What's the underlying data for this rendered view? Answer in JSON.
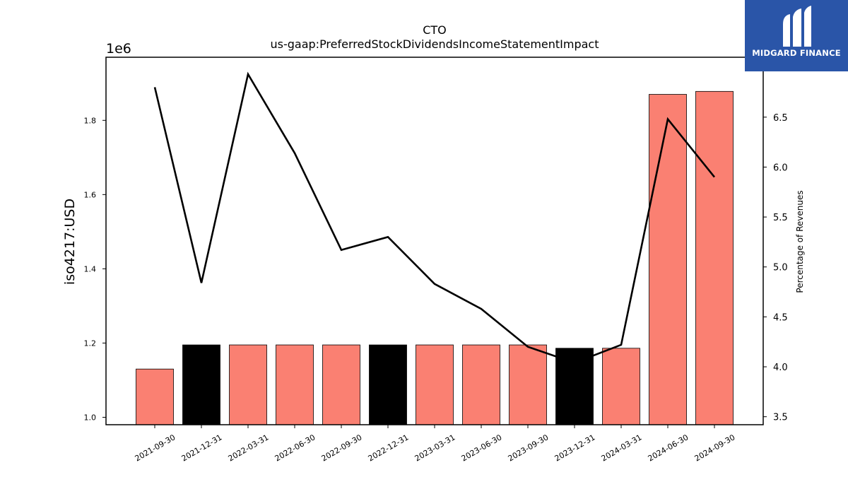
{
  "chart_data": {
    "type": "bar",
    "title": "CTO",
    "subtitle": "us-gaap:PreferredStockDividendsIncomeStatementImpact",
    "ylabel": "iso4217:USD",
    "y_multiplier": "1e6",
    "y2label": "Percentage of Revenues",
    "categories": [
      "2021-09-30",
      "2021-12-31",
      "2022-03-31",
      "2022-06-30",
      "2022-09-30",
      "2022-12-31",
      "2023-03-31",
      "2023-06-30",
      "2023-09-30",
      "2023-12-31",
      "2024-03-31",
      "2024-06-30",
      "2024-09-30"
    ],
    "series": [
      {
        "type": "bar",
        "values": [
          1130000,
          1195000,
          1195000,
          1195000,
          1195000,
          1195000,
          1195000,
          1195000,
          1195000,
          1186000,
          1186000,
          1870000,
          1878000
        ],
        "colors": [
          "#fa8072",
          "#000000",
          "#fa8072",
          "#fa8072",
          "#fa8072",
          "#000000",
          "#fa8072",
          "#fa8072",
          "#fa8072",
          "#000000",
          "#fa8072",
          "#fa8072",
          "#fa8072"
        ]
      },
      {
        "type": "line",
        "axis": "right",
        "color": "#000000",
        "values": [
          6.8,
          4.84,
          6.93,
          6.14,
          5.17,
          5.3,
          4.83,
          4.58,
          4.2,
          4.04,
          4.22,
          6.48,
          5.9
        ]
      }
    ],
    "ylim": [
      0.98,
      1.97
    ],
    "y_ticks": [
      1.0,
      1.2,
      1.4,
      1.6,
      1.8
    ],
    "y_tick_labels": [
      "1.0",
      "1.2",
      "1.4",
      "1.6",
      "1.8"
    ],
    "y2lim": [
      3.42,
      7.1
    ],
    "y2_ticks": [
      3.5,
      4.0,
      4.5,
      5.0,
      5.5,
      6.0,
      6.5
    ],
    "y2_tick_labels": [
      "3.5",
      "4.0",
      "4.5",
      "5.0",
      "5.5",
      "6.0",
      "6.5"
    ],
    "grid": false,
    "legend": "none"
  },
  "logo": {
    "text": "MIDGARD FINANCE",
    "color": "#2a55a8"
  }
}
